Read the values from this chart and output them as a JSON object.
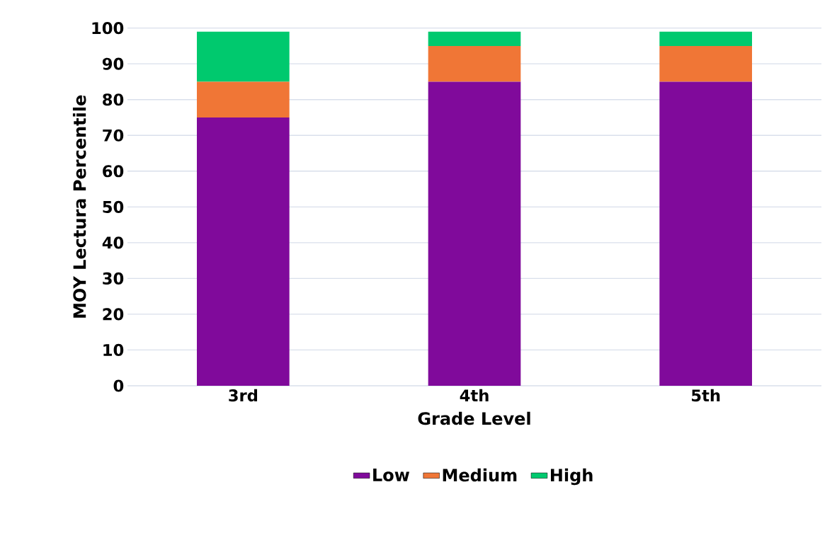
{
  "chart_data": {
    "type": "bar",
    "stacked": true,
    "xlabel": "Grade Level",
    "ylabel": "MOY Lectura Percentile",
    "categories": [
      "3rd",
      "4th",
      "5th"
    ],
    "series": [
      {
        "name": "Low",
        "color": "#800a9b",
        "values": [
          75,
          85,
          85
        ]
      },
      {
        "name": "Medium",
        "color": "#f07636",
        "values": [
          10,
          10,
          10
        ]
      },
      {
        "name": "High",
        "color": "#00c96e",
        "values": [
          14,
          4,
          4
        ]
      }
    ],
    "ylim": [
      0,
      100
    ],
    "yticks": [
      0,
      10,
      20,
      30,
      40,
      50,
      60,
      70,
      80,
      90,
      100
    ],
    "grid": "y",
    "legend": "bottom"
  }
}
